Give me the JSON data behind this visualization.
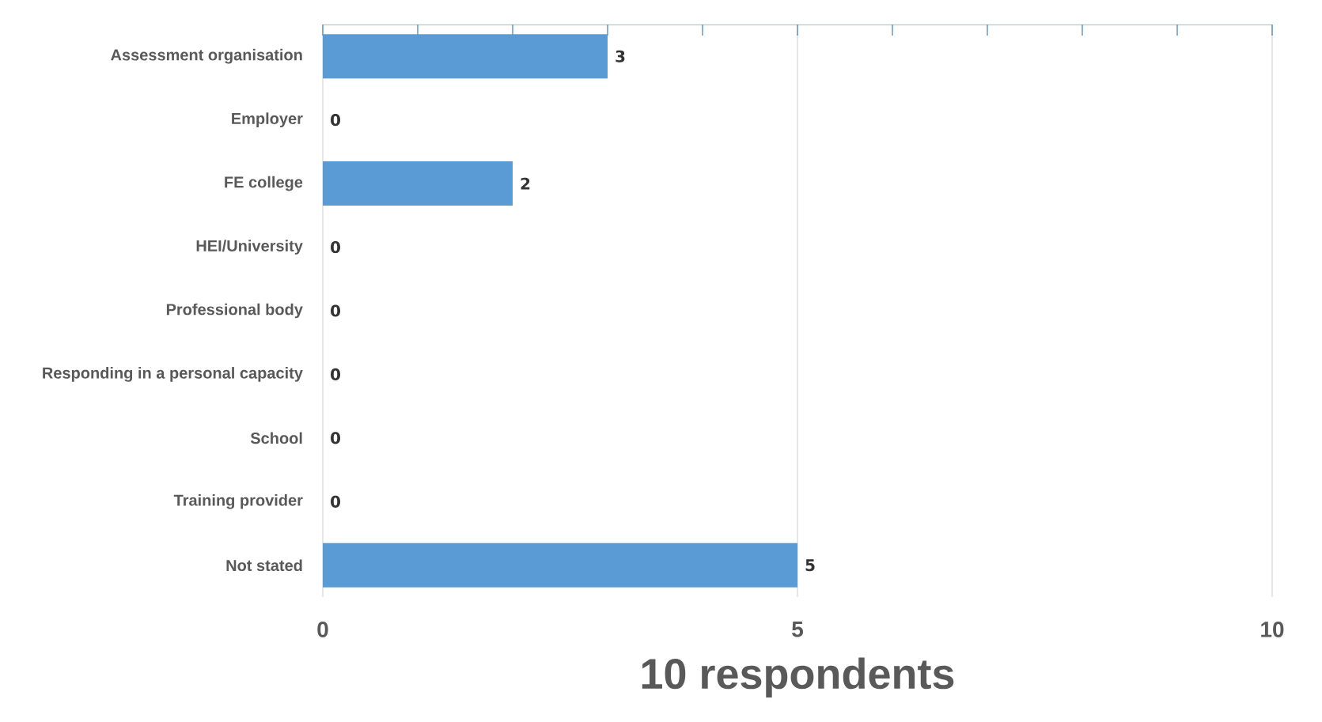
{
  "chart_data": {
    "type": "bar",
    "orientation": "horizontal",
    "categories": [
      "Assessment organisation",
      "Employer",
      "FE college",
      "HEI/University",
      "Professional body",
      "Responding in a personal capacity",
      "School",
      "Training provider",
      "Not stated"
    ],
    "values": [
      3,
      0,
      2,
      0,
      0,
      0,
      0,
      0,
      5
    ],
    "color": "#5b9bd5",
    "xlim": [
      0,
      10
    ],
    "xticks": [
      0,
      5,
      10
    ],
    "xlabel": "10 respondents",
    "grid": "x",
    "data_labels": true
  }
}
